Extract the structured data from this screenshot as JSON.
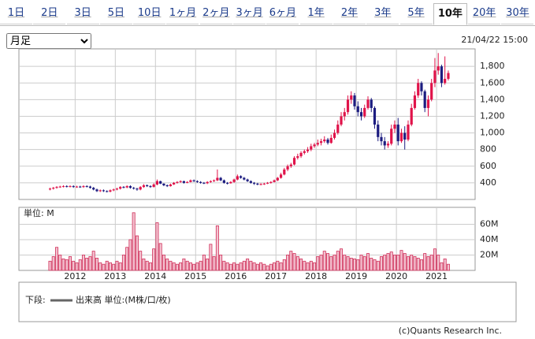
{
  "tabs": [
    "1日",
    "2日",
    "3日",
    "5日",
    "10日",
    "1ヶ月",
    "2ヶ月",
    "3ヶ月",
    "6ヶ月",
    "1年",
    "2年",
    "3年",
    "5年",
    "10年",
    "20年",
    "30年"
  ],
  "selected_tab": 13,
  "period_select": "月足",
  "timestamp": "21/04/22 15:00",
  "footer": "(c)Quants Research Inc.",
  "chart_data": [
    {
      "type": "candlestick",
      "up_color": "#e0134a",
      "down_color": "#1c1c80",
      "grid": true,
      "xlim": [
        2010.6,
        2021.96
      ],
      "xticks": [
        2012,
        2013,
        2014,
        2015,
        2016,
        2017,
        2018,
        2019,
        2020,
        2021
      ],
      "ylim": [
        200,
        2010
      ],
      "yticks": [
        400,
        600,
        800,
        {
          "value": 1000,
          "label": "1,000"
        },
        {
          "value": 1200,
          "label": "1,200"
        },
        {
          "value": 1400,
          "label": "1,400"
        },
        {
          "value": 1600,
          "label": "1,600"
        },
        {
          "value": 1800,
          "label": "1,800"
        }
      ],
      "x": [
        2011.375,
        2011.458,
        2011.542,
        2011.625,
        2011.708,
        2011.792,
        2011.875,
        2011.958,
        2012.042,
        2012.125,
        2012.208,
        2012.292,
        2012.375,
        2012.458,
        2012.542,
        2012.625,
        2012.708,
        2012.792,
        2012.875,
        2012.958,
        2013.042,
        2013.125,
        2013.208,
        2013.292,
        2013.375,
        2013.458,
        2013.542,
        2013.625,
        2013.708,
        2013.792,
        2013.875,
        2013.958,
        2014.042,
        2014.125,
        2014.208,
        2014.292,
        2014.375,
        2014.458,
        2014.542,
        2014.625,
        2014.708,
        2014.792,
        2014.875,
        2014.958,
        2015.042,
        2015.125,
        2015.208,
        2015.292,
        2015.375,
        2015.458,
        2015.542,
        2015.625,
        2015.708,
        2015.792,
        2015.875,
        2015.958,
        2016.042,
        2016.125,
        2016.208,
        2016.292,
        2016.375,
        2016.458,
        2016.542,
        2016.625,
        2016.708,
        2016.792,
        2016.875,
        2016.958,
        2017.042,
        2017.125,
        2017.208,
        2017.292,
        2017.375,
        2017.458,
        2017.542,
        2017.625,
        2017.708,
        2017.792,
        2017.875,
        2017.958,
        2018.042,
        2018.125,
        2018.208,
        2018.292,
        2018.375,
        2018.458,
        2018.542,
        2018.625,
        2018.708,
        2018.792,
        2018.875,
        2018.958,
        2019.042,
        2019.125,
        2019.208,
        2019.292,
        2019.375,
        2019.458,
        2019.542,
        2019.625,
        2019.708,
        2019.792,
        2019.875,
        2019.958,
        2020.042,
        2020.125,
        2020.208,
        2020.292,
        2020.375,
        2020.458,
        2020.542,
        2020.625,
        2020.708,
        2020.792,
        2020.875,
        2020.958,
        2021.042,
        2021.125,
        2021.208,
        2021.292
      ],
      "open": [
        320,
        330,
        340,
        350,
        355,
        360,
        355,
        360,
        350,
        355,
        350,
        360,
        355,
        340,
        320,
        300,
        310,
        300,
        295,
        310,
        320,
        330,
        350,
        345,
        360,
        340,
        330,
        320,
        350,
        370,
        360,
        350,
        380,
        420,
        390,
        370,
        360,
        380,
        400,
        410,
        420,
        400,
        410,
        430,
        420,
        410,
        400,
        395,
        410,
        420,
        430,
        460,
        430,
        400,
        395,
        410,
        440,
        480,
        460,
        440,
        420,
        400,
        390,
        380,
        385,
        390,
        400,
        410,
        430,
        460,
        500,
        560,
        600,
        620,
        700,
        720,
        760,
        780,
        800,
        840,
        860,
        880,
        900,
        920,
        880,
        940,
        1000,
        1100,
        1200,
        1250,
        1400,
        1450,
        1320,
        1250,
        1200,
        1300,
        1400,
        1300,
        1100,
        950,
        900,
        850,
        870,
        1050,
        1100,
        900,
        1000,
        920,
        1100,
        1300,
        1450,
        1600,
        1500,
        1300,
        1400,
        1600,
        1750,
        1800,
        1600,
        1650
      ],
      "high": [
        340,
        350,
        360,
        365,
        370,
        370,
        370,
        370,
        365,
        365,
        370,
        370,
        365,
        350,
        330,
        320,
        320,
        310,
        320,
        330,
        340,
        360,
        360,
        370,
        370,
        350,
        340,
        360,
        385,
        380,
        370,
        395,
        440,
        425,
        395,
        380,
        390,
        410,
        420,
        430,
        425,
        420,
        440,
        440,
        430,
        420,
        410,
        420,
        430,
        440,
        560,
        470,
        440,
        410,
        420,
        450,
        500,
        490,
        470,
        450,
        430,
        410,
        400,
        395,
        400,
        410,
        420,
        440,
        470,
        520,
        580,
        620,
        640,
        720,
        750,
        780,
        800,
        830,
        870,
        880,
        920,
        930,
        960,
        940,
        980,
        1040,
        1150,
        1250,
        1300,
        1450,
        1500,
        1480,
        1380,
        1300,
        1340,
        1440,
        1420,
        1320,
        1150,
        1000,
        950,
        900,
        1100,
        1150,
        1180,
        1050,
        1080,
        1150,
        1350,
        1500,
        1650,
        1620,
        1520,
        1450,
        1650,
        1900,
        1960,
        1820,
        1920,
        1750
      ],
      "low": [
        310,
        320,
        330,
        340,
        345,
        345,
        345,
        340,
        340,
        340,
        340,
        345,
        330,
        310,
        290,
        290,
        290,
        285,
        285,
        300,
        310,
        320,
        335,
        335,
        330,
        320,
        305,
        310,
        340,
        350,
        340,
        345,
        370,
        385,
        360,
        350,
        355,
        375,
        390,
        400,
        390,
        395,
        405,
        410,
        400,
        390,
        385,
        385,
        400,
        410,
        420,
        420,
        390,
        380,
        390,
        400,
        430,
        450,
        430,
        410,
        390,
        375,
        370,
        370,
        375,
        385,
        390,
        405,
        420,
        450,
        490,
        540,
        580,
        610,
        680,
        700,
        740,
        760,
        780,
        820,
        840,
        850,
        880,
        860,
        870,
        920,
        980,
        1080,
        1150,
        1220,
        1350,
        1280,
        1200,
        1150,
        1180,
        1280,
        1250,
        1050,
        900,
        850,
        800,
        820,
        850,
        1000,
        850,
        880,
        800,
        900,
        1080,
        1280,
        1420,
        1450,
        1250,
        1200,
        1380,
        1550,
        1700,
        1550,
        1580,
        1630
      ],
      "close": [
        330,
        340,
        350,
        355,
        360,
        355,
        360,
        350,
        355,
        350,
        360,
        355,
        340,
        320,
        300,
        310,
        300,
        295,
        310,
        320,
        330,
        350,
        345,
        360,
        340,
        330,
        320,
        350,
        370,
        360,
        350,
        380,
        420,
        390,
        370,
        360,
        380,
        400,
        410,
        420,
        400,
        410,
        430,
        420,
        410,
        400,
        395,
        410,
        420,
        430,
        460,
        430,
        400,
        395,
        410,
        440,
        480,
        460,
        440,
        420,
        400,
        390,
        380,
        385,
        390,
        400,
        410,
        430,
        460,
        500,
        560,
        600,
        620,
        700,
        720,
        760,
        780,
        800,
        840,
        860,
        880,
        900,
        920,
        880,
        940,
        1000,
        1100,
        1200,
        1250,
        1400,
        1450,
        1320,
        1250,
        1200,
        1300,
        1400,
        1300,
        1100,
        950,
        900,
        850,
        870,
        1050,
        1100,
        900,
        1000,
        920,
        1100,
        1300,
        1450,
        1600,
        1500,
        1300,
        1400,
        1600,
        1750,
        1800,
        1600,
        1650,
        1720
      ]
    },
    {
      "type": "bar",
      "title": "単位: M",
      "legend_title": "下段:",
      "grid": true,
      "ylim": [
        0,
        82
      ],
      "yticks": [
        {
          "value": 20,
          "label": "20M"
        },
        {
          "value": 40,
          "label": "40M"
        },
        {
          "value": 60,
          "label": "60M"
        }
      ],
      "series": [
        {
          "name": "出来高 単位:(M株/口/枚)",
          "color": "#d0305a",
          "values": [
            12,
            18,
            30,
            20,
            15,
            14,
            18,
            12,
            10,
            14,
            20,
            16,
            18,
            25,
            16,
            10,
            8,
            12,
            10,
            8,
            12,
            10,
            20,
            30,
            40,
            75,
            45,
            25,
            15,
            12,
            10,
            28,
            62,
            35,
            20,
            15,
            12,
            10,
            8,
            10,
            15,
            12,
            10,
            8,
            10,
            12,
            20,
            15,
            34,
            18,
            58,
            20,
            12,
            10,
            8,
            10,
            8,
            10,
            12,
            15,
            12,
            10,
            8,
            10,
            8,
            6,
            8,
            10,
            12,
            10,
            14,
            20,
            25,
            22,
            18,
            15,
            12,
            10,
            12,
            10,
            18,
            20,
            25,
            22,
            18,
            20,
            25,
            28,
            20,
            18,
            16,
            15,
            14,
            20,
            18,
            22,
            16,
            14,
            12,
            18,
            20,
            22,
            24,
            20,
            20,
            26,
            22,
            18,
            20,
            18,
            16,
            14,
            22,
            18,
            20,
            28,
            20,
            10,
            15,
            8
          ]
        }
      ]
    }
  ]
}
